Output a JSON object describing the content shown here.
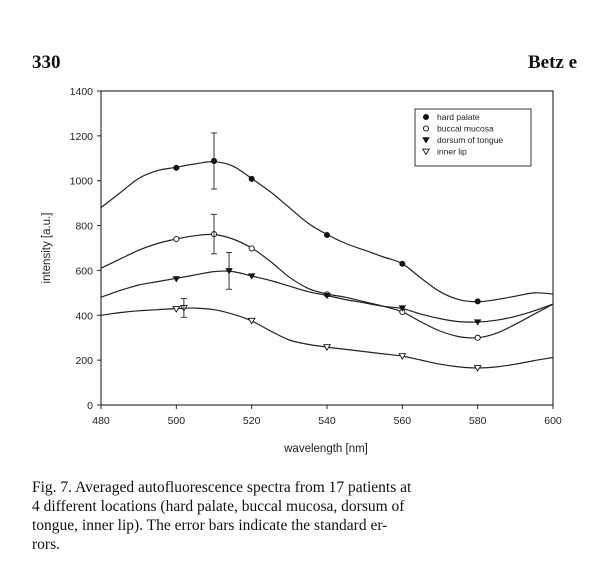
{
  "header": {
    "page_number": "330",
    "running_head": "Betz e"
  },
  "chart_data": {
    "type": "line",
    "xlabel": "wavelength [nm]",
    "ylabel": "intensity [a.u.]",
    "xlim": [
      480,
      600
    ],
    "ylim": [
      0,
      1400
    ],
    "xticks": [
      480,
      500,
      520,
      540,
      560,
      580,
      600
    ],
    "yticks": [
      0,
      200,
      400,
      600,
      800,
      1000,
      1200,
      1400
    ],
    "grid": false,
    "legend_position": "top-right",
    "series": [
      {
        "name": "hard palate",
        "marker": "filled-circle",
        "x": [
          480,
          485,
          490,
          495,
          500,
          505,
          510,
          515,
          520,
          525,
          530,
          535,
          540,
          545,
          550,
          555,
          560,
          565,
          570,
          575,
          580,
          585,
          590,
          595,
          600
        ],
        "y": [
          880,
          945,
          1010,
          1045,
          1060,
          1075,
          1085,
          1065,
          1010,
          950,
          880,
          810,
          760,
          720,
          690,
          660,
          630,
          565,
          505,
          470,
          460,
          470,
          485,
          500,
          495
        ],
        "marker_x": [
          500,
          510,
          520,
          540,
          560,
          580
        ],
        "marker_y": [
          1058,
          1088,
          1008,
          758,
          630,
          462
        ],
        "error_bars": [
          {
            "x": 510,
            "y": 1088,
            "err": 125
          }
        ]
      },
      {
        "name": "buccal mucosa",
        "marker": "open-circle",
        "x": [
          480,
          485,
          490,
          495,
          500,
          505,
          510,
          515,
          520,
          525,
          530,
          535,
          540,
          545,
          550,
          555,
          560,
          565,
          570,
          575,
          580,
          585,
          590,
          595,
          600
        ],
        "y": [
          610,
          650,
          690,
          720,
          740,
          755,
          760,
          740,
          700,
          640,
          570,
          520,
          495,
          480,
          460,
          440,
          415,
          370,
          330,
          305,
          300,
          320,
          360,
          405,
          450
        ],
        "marker_x": [
          500,
          520,
          540,
          560,
          580
        ],
        "marker_y": [
          740,
          698,
          493,
          415,
          300
        ],
        "error_bars": [
          {
            "x": 510,
            "y": 762,
            "err": 88
          }
        ]
      },
      {
        "name": "dorsum of tongue",
        "marker": "filled-triangle-down",
        "x": [
          480,
          485,
          490,
          495,
          500,
          505,
          510,
          515,
          520,
          525,
          530,
          535,
          540,
          545,
          550,
          555,
          560,
          565,
          570,
          575,
          580,
          585,
          590,
          595,
          600
        ],
        "y": [
          480,
          510,
          535,
          550,
          565,
          580,
          595,
          595,
          575,
          555,
          530,
          505,
          488,
          470,
          455,
          440,
          430,
          405,
          385,
          372,
          370,
          378,
          395,
          420,
          450
        ],
        "marker_x": [
          500,
          520,
          540,
          560,
          580
        ],
        "marker_y": [
          562,
          575,
          488,
          432,
          370
        ],
        "error_bars": [
          {
            "x": 514,
            "y": 598,
            "err": 82
          }
        ]
      },
      {
        "name": "inner lip",
        "marker": "open-triangle-down",
        "x": [
          480,
          485,
          490,
          495,
          500,
          505,
          510,
          515,
          520,
          525,
          530,
          535,
          540,
          545,
          550,
          555,
          560,
          565,
          570,
          575,
          580,
          585,
          590,
          595,
          600
        ],
        "y": [
          400,
          412,
          420,
          425,
          430,
          432,
          425,
          405,
          375,
          330,
          290,
          270,
          258,
          248,
          238,
          228,
          218,
          200,
          182,
          170,
          165,
          170,
          182,
          198,
          212
        ],
        "marker_x": [
          500,
          520,
          540,
          560,
          580
        ],
        "marker_y": [
          428,
          376,
          258,
          218,
          165
        ],
        "error_bars": [
          {
            "x": 502,
            "y": 433,
            "err": 42
          }
        ]
      }
    ]
  },
  "caption": {
    "lines": [
      "Fig. 7.  Averaged autofluorescence spectra from 17 patients at",
      "4 different locations (hard palate, buccal mucosa, dorsum of",
      "tongue, inner lip). The error bars indicate the standard er-",
      "rors."
    ]
  }
}
